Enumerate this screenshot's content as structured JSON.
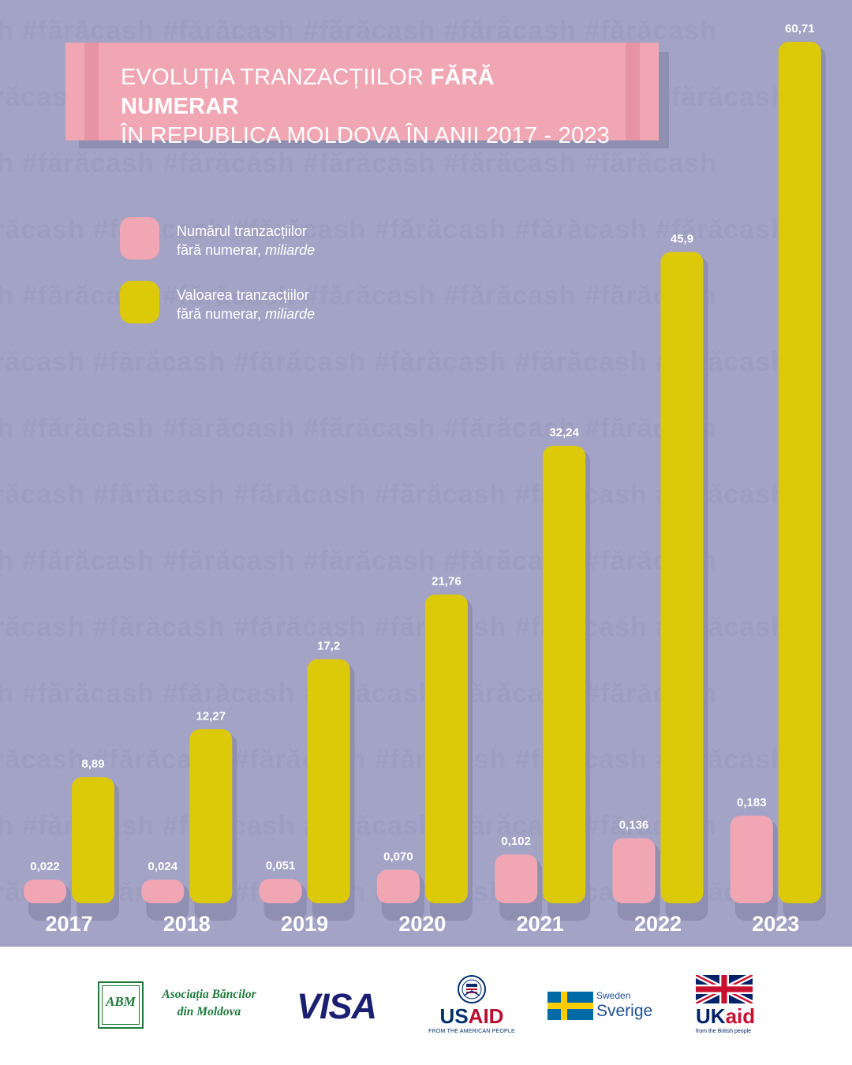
{
  "title": {
    "part1": "EVOLUȚIA TRANZACȚIILOR",
    "bold": "FĂRĂ NUMERAR",
    "line2": "ÎN REPUBLICA MOLDOVA ÎN ANII 2017 - 2023"
  },
  "watermark_text": "#fărăcash",
  "legend": {
    "count": {
      "line1": "Numărul tranzacțiilor",
      "line2": "fără numerar,",
      "unit": "miliarde"
    },
    "value": {
      "line1": "Valoarea tranzacțiilor",
      "line2": "fără numerar,",
      "unit": "miliarde"
    }
  },
  "colors": {
    "background": "#a3a3c6",
    "count_bar": "#f0a6b3",
    "value_bar": "#dbc90a",
    "text": "#ffffff"
  },
  "chart_data": {
    "type": "bar",
    "title": "EVOLUȚIA TRANZACȚIILOR FĂRĂ NUMERAR ÎN REPUBLICA MOLDOVA ÎN ANII 2017 - 2023",
    "xlabel": "",
    "ylabel": "",
    "categories": [
      "2017",
      "2018",
      "2019",
      "2020",
      "2021",
      "2022",
      "2023"
    ],
    "series": [
      {
        "name": "Numărul tranzacțiilor fără numerar, miliarde",
        "values": [
          0.022,
          0.024,
          0.051,
          0.07,
          0.102,
          0.136,
          0.183
        ],
        "labels": [
          "0,022",
          "0,024",
          "0,051",
          "0,070",
          "0,102",
          "0,136",
          "0,183"
        ]
      },
      {
        "name": "Valoarea tranzacțiilor fără numerar, miliarde",
        "values": [
          8.89,
          12.27,
          17.2,
          21.76,
          32.24,
          45.9,
          60.71
        ],
        "labels": [
          "8,89",
          "12,27",
          "17,2",
          "21,76",
          "32,24",
          "45,9",
          "60,71"
        ]
      }
    ],
    "grid": false,
    "legend": "top-left"
  },
  "footer": {
    "abm": {
      "monogram": "ABM",
      "line1": "Asociația Băncilor",
      "line2": "din Moldova"
    },
    "visa": "VISA",
    "usaid": {
      "name": "USAID",
      "tagline": "FROM THE AMERICAN PEOPLE"
    },
    "sweden": {
      "line1": "Sweden",
      "line2": "Sverige"
    },
    "ukaid": {
      "uk": "UK",
      "aid": "aid",
      "tagline": "from the British people"
    }
  }
}
